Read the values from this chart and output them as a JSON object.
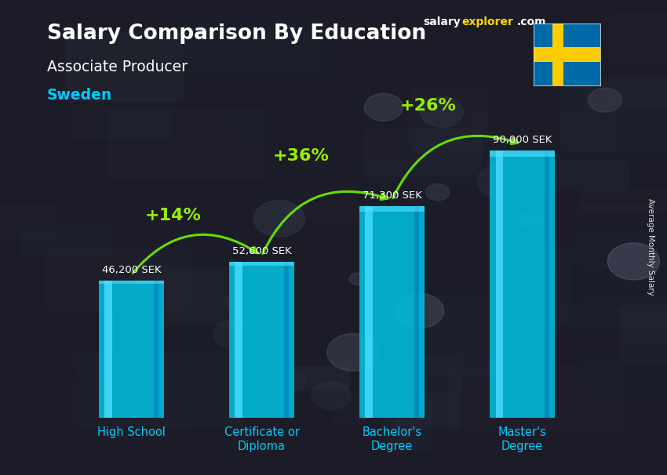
{
  "title": "Salary Comparison By Education",
  "subtitle": "Associate Producer",
  "country": "Sweden",
  "categories": [
    "High School",
    "Certificate or\nDiploma",
    "Bachelor's\nDegree",
    "Master's\nDegree"
  ],
  "values": [
    46200,
    52600,
    71300,
    90000
  ],
  "value_labels": [
    "46,200 SEK",
    "52,600 SEK",
    "71,300 SEK",
    "90,000 SEK"
  ],
  "pct_labels": [
    "+14%",
    "+36%",
    "+26%"
  ],
  "bar_color_main": "#00bfdf",
  "bar_color_light": "#50e0ff",
  "bar_color_dark": "#0088bb",
  "background_color": "#1c1c28",
  "title_color": "#ffffff",
  "subtitle_color": "#ffffff",
  "country_color": "#00ccff",
  "value_label_color": "#ffffff",
  "pct_color": "#99ee00",
  "arrow_color": "#66dd00",
  "ylabel": "Average Monthly Salary",
  "ylim": [
    0,
    115000
  ],
  "bar_width": 0.5,
  "x_label_color": "#00ccff"
}
